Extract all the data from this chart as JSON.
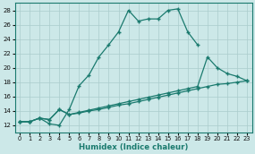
{
  "background_color": "#cce8e8",
  "grid_color": "#aacccc",
  "line_color": "#1a7a6e",
  "xlabel": "Humidex (Indice chaleur)",
  "xlim": [
    -0.5,
    23.5
  ],
  "ylim": [
    11,
    29
  ],
  "xticks": [
    0,
    1,
    2,
    3,
    4,
    5,
    6,
    7,
    8,
    9,
    10,
    11,
    12,
    13,
    14,
    15,
    16,
    17,
    18,
    19,
    20,
    21,
    22,
    23
  ],
  "yticks": [
    12,
    14,
    16,
    18,
    20,
    22,
    24,
    26,
    28
  ],
  "line1": {
    "x": [
      0,
      1,
      2,
      3,
      4,
      5,
      6,
      7,
      8,
      9,
      10,
      11,
      12,
      13,
      14,
      15,
      16,
      17,
      18
    ],
    "y": [
      12.5,
      12.5,
      13.0,
      12.2,
      12.0,
      14.2,
      17.5,
      19.0,
      21.5,
      23.2,
      25.0,
      28.0,
      26.5,
      26.8,
      26.8,
      28.0,
      28.2,
      25.0,
      23.2
    ]
  },
  "line2": {
    "x": [
      0,
      1,
      2,
      3,
      4,
      5,
      6,
      7,
      8,
      9,
      10,
      11,
      12,
      13,
      14,
      15,
      16,
      17,
      18,
      19,
      20,
      21,
      22,
      23
    ],
    "y": [
      12.5,
      12.5,
      13.0,
      12.8,
      14.2,
      13.5,
      13.7,
      14.0,
      14.2,
      14.5,
      14.8,
      15.0,
      15.3,
      15.6,
      15.9,
      16.2,
      16.5,
      16.8,
      17.1,
      17.4,
      17.7,
      17.8,
      18.0,
      18.2
    ]
  },
  "line3": {
    "x": [
      0,
      1,
      2,
      3,
      4,
      5,
      6,
      7,
      8,
      9,
      10,
      11,
      12,
      13,
      14,
      15,
      16,
      17,
      18,
      19,
      20,
      21,
      22,
      23
    ],
    "y": [
      12.5,
      12.5,
      13.0,
      12.8,
      14.2,
      13.5,
      13.8,
      14.1,
      14.4,
      14.7,
      15.0,
      15.3,
      15.6,
      15.9,
      16.2,
      16.5,
      16.8,
      17.1,
      17.4,
      21.5,
      20.0,
      19.2,
      18.8,
      18.2
    ]
  }
}
